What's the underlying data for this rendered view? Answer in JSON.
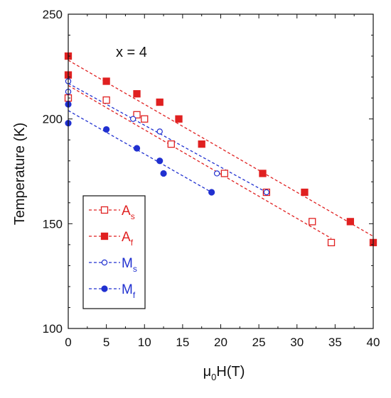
{
  "chart_data": {
    "type": "scatter",
    "xlabel": "μ0H(T)",
    "xlabel_parts": {
      "main": "μ",
      "sub": "0",
      "rest": "H(T)"
    },
    "ylabel": "Temperature (K)",
    "annotation": "x = 4",
    "xlim": [
      0,
      40
    ],
    "ylim": [
      100,
      250
    ],
    "xticks": [
      0,
      5,
      10,
      15,
      20,
      25,
      30,
      35,
      40
    ],
    "yticks": [
      100,
      150,
      200,
      250
    ],
    "grid": false,
    "legend_position": "bottom-left",
    "series": [
      {
        "name": "As",
        "label_main": "A",
        "label_sub": "s",
        "color": "#e02020",
        "marker": "open-square",
        "points": [
          [
            0,
            210
          ],
          [
            5,
            209
          ],
          [
            9,
            202
          ],
          [
            10,
            200
          ],
          [
            13.5,
            188
          ],
          [
            20.5,
            174
          ],
          [
            26,
            165
          ],
          [
            32,
            151
          ],
          [
            34.5,
            141
          ]
        ],
        "fit": [
          [
            0,
            216
          ],
          [
            34.5,
            143
          ]
        ]
      },
      {
        "name": "Af",
        "label_main": "A",
        "label_sub": "f",
        "color": "#e02020",
        "marker": "filled-square",
        "points": [
          [
            0,
            230
          ],
          [
            0,
            221
          ],
          [
            5,
            218
          ],
          [
            9,
            212
          ],
          [
            12,
            208
          ],
          [
            14.5,
            200
          ],
          [
            17.5,
            188
          ],
          [
            25.5,
            174
          ],
          [
            31,
            165
          ],
          [
            37,
            151
          ],
          [
            40,
            141
          ]
        ],
        "fit": [
          [
            0,
            228
          ],
          [
            40,
            144
          ]
        ]
      },
      {
        "name": "Ms",
        "label_main": "M",
        "label_sub": "s",
        "color": "#2030d0",
        "marker": "open-circle",
        "points": [
          [
            0,
            218
          ],
          [
            0,
            213
          ],
          [
            8.5,
            200
          ],
          [
            12,
            194
          ],
          [
            19.5,
            174
          ],
          [
            26,
            165
          ]
        ],
        "fit": [
          [
            0,
            217
          ],
          [
            26,
            165
          ]
        ]
      },
      {
        "name": "Mf",
        "label_main": "M",
        "label_sub": "f",
        "color": "#2030d0",
        "marker": "filled-circle",
        "points": [
          [
            0,
            207
          ],
          [
            0,
            198
          ],
          [
            5,
            195
          ],
          [
            9,
            186
          ],
          [
            12,
            180
          ],
          [
            12.5,
            174
          ],
          [
            18.8,
            165
          ]
        ],
        "fit": [
          [
            0,
            204
          ],
          [
            18.8,
            165
          ]
        ]
      }
    ]
  }
}
